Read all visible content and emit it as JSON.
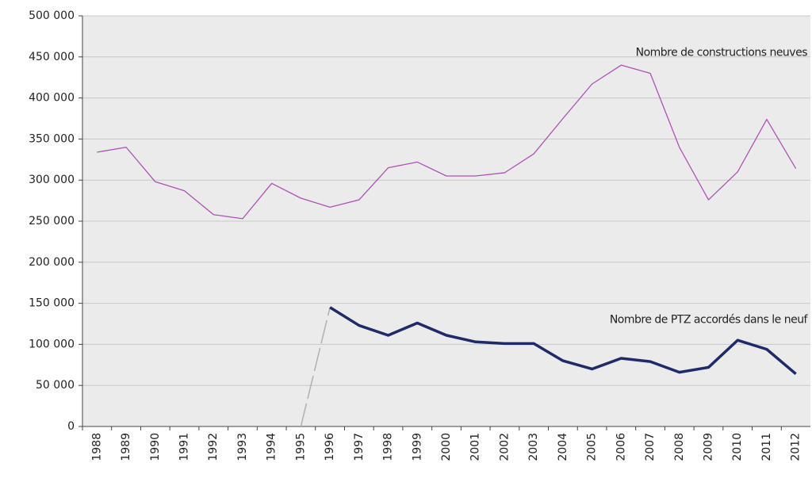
{
  "chart_data": {
    "type": "line",
    "categories": [
      "1988",
      "1989",
      "1990",
      "1991",
      "1992",
      "1993",
      "1994",
      "1995",
      "1996",
      "1997",
      "1998",
      "1999",
      "2000",
      "2001",
      "2002",
      "2003",
      "2004",
      "2005",
      "2006",
      "2007",
      "2008",
      "2009",
      "2010",
      "2011",
      "2012"
    ],
    "series": [
      {
        "name": "Nombre de constructions neuves",
        "color": "#b050b8",
        "values": [
          334000,
          340000,
          298000,
          287000,
          258000,
          253000,
          296000,
          278000,
          267000,
          276000,
          315000,
          322000,
          305000,
          305000,
          309000,
          332000,
          375000,
          417000,
          440000,
          430000,
          340000,
          276000,
          310000,
          374000,
          314000
        ]
      },
      {
        "name": "Nombre de PTZ accordés dans le neuf",
        "color": "#1f2a6b",
        "lead_in_color": "#b0b0b0",
        "values": [
          null,
          null,
          null,
          null,
          null,
          null,
          null,
          0,
          145000,
          123000,
          111000,
          126000,
          111000,
          103000,
          101000,
          101000,
          80000,
          70000,
          83000,
          79000,
          66000,
          72000,
          105000,
          94000,
          64000
        ]
      }
    ],
    "ylim": [
      0,
      500000
    ],
    "yticks": [
      0,
      {
        "value": 50000,
        "label": "50 000"
      },
      {
        "value": 100000,
        "label": "100 000"
      },
      {
        "value": 150000,
        "label": "150 000"
      },
      {
        "value": 200000,
        "label": "200 000"
      },
      {
        "value": 250000,
        "label": "250 000"
      },
      {
        "value": 300000,
        "label": "300 000"
      },
      {
        "value": 350000,
        "label": "350 000"
      },
      {
        "value": 400000,
        "label": "400 000"
      },
      {
        "value": 450000,
        "label": "450 000"
      },
      {
        "value": 500000,
        "label": "500 000"
      }
    ],
    "grid": true
  }
}
